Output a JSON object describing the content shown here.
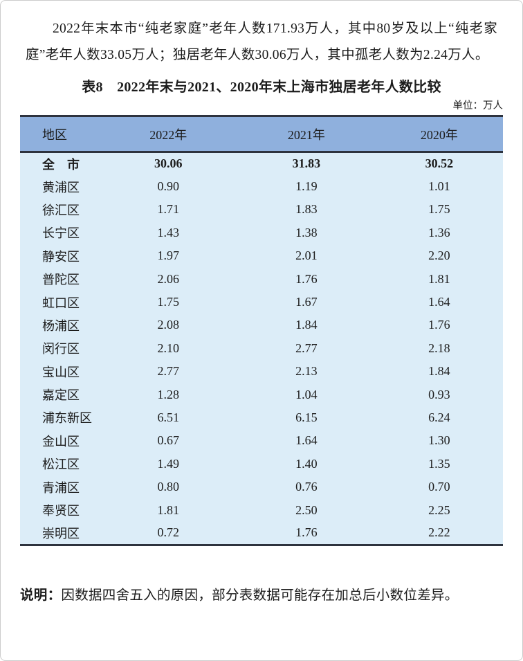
{
  "page": {
    "paragraph": "2022年末本市“纯老家庭”老年人数171.93万人，其中80岁及以上“纯老家庭”老年人数33.05万人；独居老年人数30.06万人，其中孤老人数为2.24万人。",
    "table_title": "表8　2022年末与2021、2020年末上海市独居老年人数比较",
    "unit_label": "单位：万人",
    "note_label": "说明：",
    "note_text": "因数据四舍五入的原因，部分表数据可能存在加总后小数位差异。"
  },
  "table": {
    "columns": [
      "地区",
      "2022年",
      "2021年",
      "2020年"
    ],
    "rows": [
      {
        "region": "全　市",
        "values": [
          "30.06",
          "31.83",
          "30.52"
        ],
        "bold": true
      },
      {
        "region": "黄浦区",
        "values": [
          "0.90",
          "1.19",
          "1.01"
        ],
        "bold": false
      },
      {
        "region": "徐汇区",
        "values": [
          "1.71",
          "1.83",
          "1.75"
        ],
        "bold": false
      },
      {
        "region": "长宁区",
        "values": [
          "1.43",
          "1.38",
          "1.36"
        ],
        "bold": false
      },
      {
        "region": "静安区",
        "values": [
          "1.97",
          "2.01",
          "2.20"
        ],
        "bold": false
      },
      {
        "region": "普陀区",
        "values": [
          "2.06",
          "1.76",
          "1.81"
        ],
        "bold": false
      },
      {
        "region": "虹口区",
        "values": [
          "1.75",
          "1.67",
          "1.64"
        ],
        "bold": false
      },
      {
        "region": "杨浦区",
        "values": [
          "2.08",
          "1.84",
          "1.76"
        ],
        "bold": false
      },
      {
        "region": "闵行区",
        "values": [
          "2.10",
          "2.77",
          "2.18"
        ],
        "bold": false
      },
      {
        "region": "宝山区",
        "values": [
          "2.77",
          "2.13",
          "1.84"
        ],
        "bold": false
      },
      {
        "region": "嘉定区",
        "values": [
          "1.28",
          "1.04",
          "0.93"
        ],
        "bold": false
      },
      {
        "region": "浦东新区",
        "values": [
          "6.51",
          "6.15",
          "6.24"
        ],
        "bold": false
      },
      {
        "region": "金山区",
        "values": [
          "0.67",
          "1.64",
          "1.30"
        ],
        "bold": false
      },
      {
        "region": "松江区",
        "values": [
          "1.49",
          "1.40",
          "1.35"
        ],
        "bold": false
      },
      {
        "region": "青浦区",
        "values": [
          "0.80",
          "0.76",
          "0.70"
        ],
        "bold": false
      },
      {
        "region": "奉贤区",
        "values": [
          "1.81",
          "2.50",
          "2.25"
        ],
        "bold": false
      },
      {
        "region": "崇明区",
        "values": [
          "0.72",
          "1.76",
          "2.22"
        ],
        "bold": false
      }
    ]
  },
  "colors": {
    "header_bg": "#8fb0dd",
    "body_bg": "#dcedf8",
    "border_dark": "#2d333e",
    "text": "#1c1c1c",
    "page_border": "#cccccc"
  }
}
